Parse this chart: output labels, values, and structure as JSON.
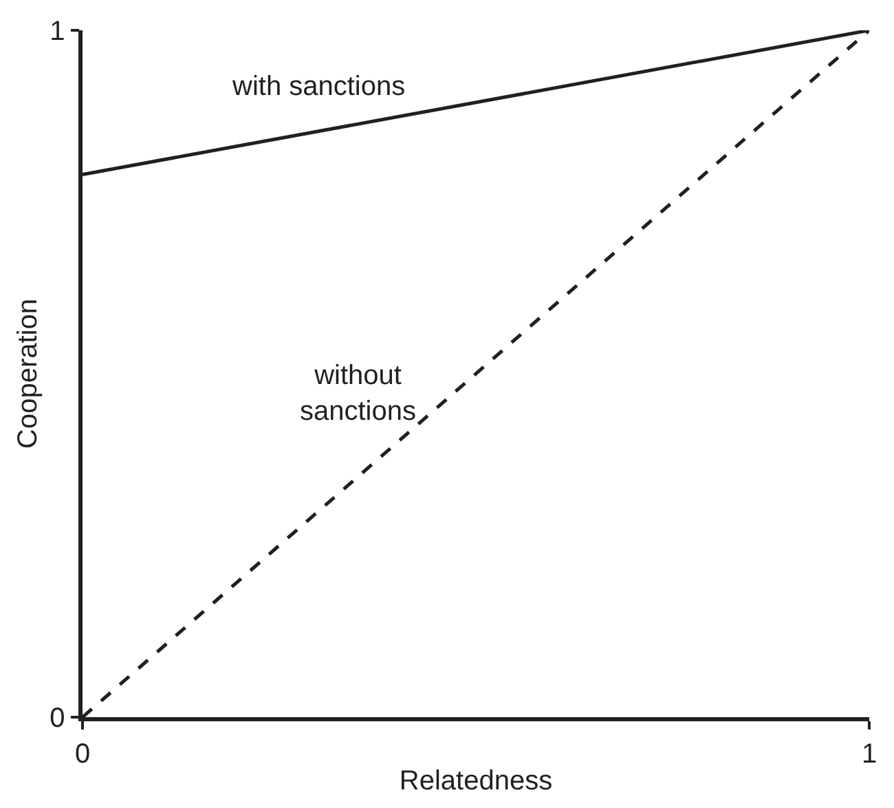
{
  "chart_data": {
    "type": "line",
    "xlabel": "Relatedness",
    "ylabel": "Cooperation",
    "x": [
      0,
      1
    ],
    "xlim": [
      0,
      1
    ],
    "ylim": [
      0,
      1
    ],
    "xticks": [
      0,
      1
    ],
    "yticks": [
      0,
      1
    ],
    "series": [
      {
        "name": "with sanctions",
        "color": "#231f20",
        "values": [
          0.79,
          1
        ],
        "line_style": "solid"
      },
      {
        "name": "without sanctions",
        "color": "#231f20",
        "values": [
          0,
          1
        ],
        "line_style": "dashed"
      }
    ],
    "legend": false,
    "marker": "none"
  }
}
